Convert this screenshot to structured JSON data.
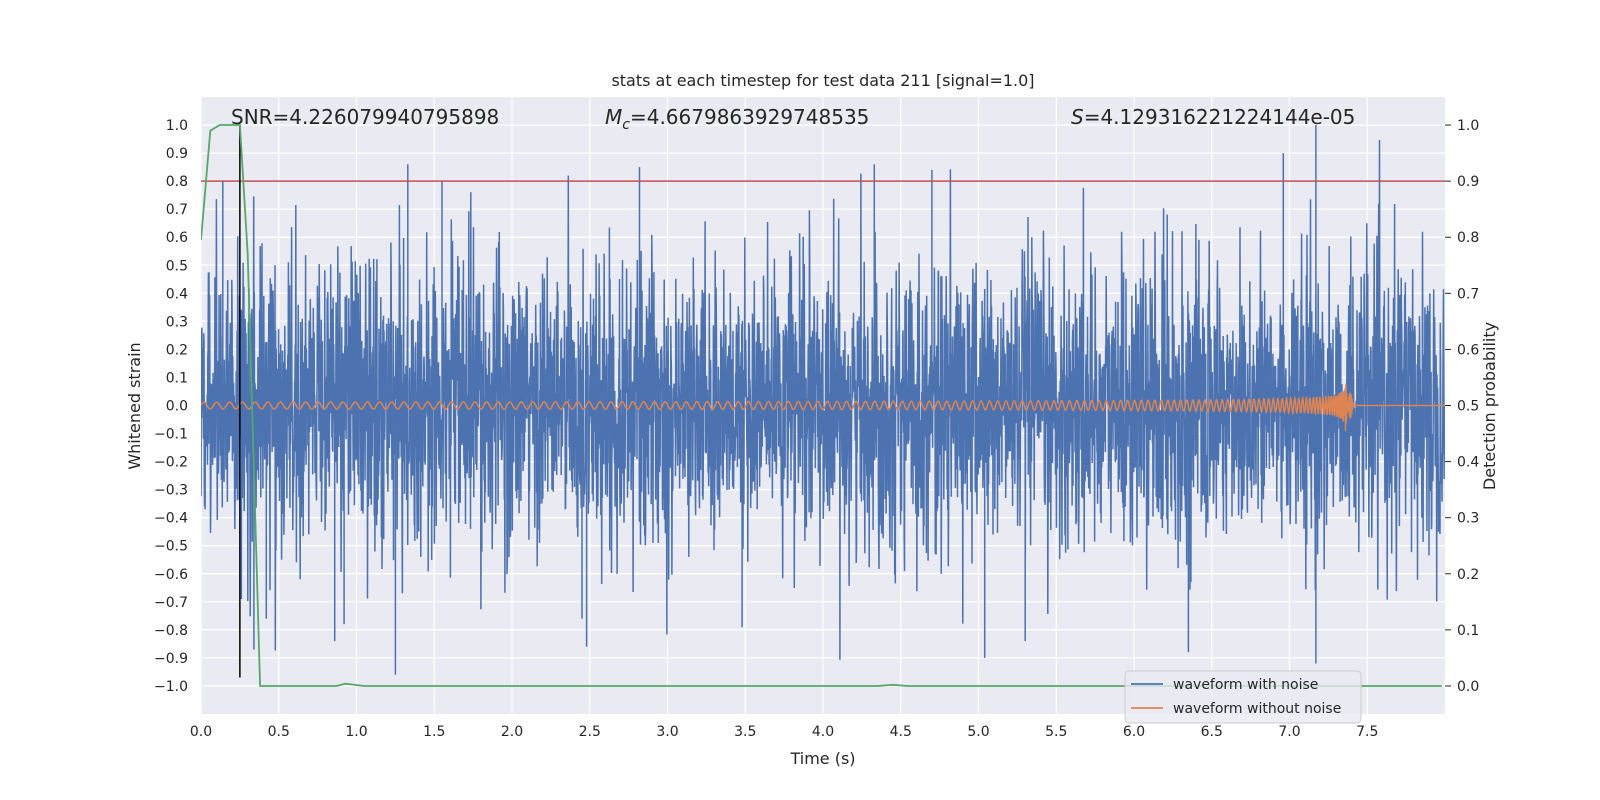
{
  "chart_data": {
    "type": "line",
    "title": "stats at each timestep for test data 211 [signal=1.0]",
    "xlabel": "Time (s)",
    "ylabel": "Whitened strain",
    "ylabel_right": "Detection probability",
    "xlim": [
      0.0,
      8.0
    ],
    "ylim": [
      -1.1,
      1.1
    ],
    "ylim_right": [
      -0.05,
      1.05
    ],
    "x_ticks": [
      0.0,
      0.5,
      1.0,
      1.5,
      2.0,
      2.5,
      3.0,
      3.5,
      4.0,
      4.5,
      5.0,
      5.5,
      6.0,
      6.5,
      7.0,
      7.5
    ],
    "x_tick_labels": [
      "0.0",
      "0.5",
      "1.0",
      "1.5",
      "2.0",
      "2.5",
      "3.0",
      "3.5",
      "4.0",
      "4.5",
      "5.0",
      "5.5",
      "6.0",
      "6.5",
      "7.0",
      "7.5"
    ],
    "y_ticks": [
      1.0,
      0.9,
      0.8,
      0.7,
      0.6,
      0.5,
      0.4,
      0.3,
      0.2,
      0.1,
      0.0,
      -0.1,
      -0.2,
      -0.3,
      -0.4,
      -0.5,
      -0.6,
      -0.7,
      -0.8,
      -0.9,
      -1.0
    ],
    "y_tick_labels": [
      "1.0",
      "0.9",
      "0.8",
      "0.7",
      "0.6",
      "0.5",
      "0.4",
      "0.3",
      "0.2",
      "0.1",
      "0.0",
      "−0.1",
      "−0.2",
      "−0.3",
      "−0.4",
      "−0.5",
      "−0.6",
      "−0.7",
      "−0.8",
      "−0.9",
      "−1.0"
    ],
    "y_right_ticks": [
      1.0,
      0.9,
      0.8,
      0.7,
      0.6,
      0.5,
      0.4,
      0.3,
      0.2,
      0.1,
      0.0
    ],
    "y_right_tick_labels": [
      "1.0",
      "0.9",
      "0.8",
      "0.7",
      "0.6",
      "0.5",
      "0.4",
      "0.3",
      "0.2",
      "0.1",
      "0.0"
    ],
    "grid": true,
    "legend_position": "bottom-right",
    "annotations": {
      "snr": "SNR=4.226079940795898",
      "mc_symbol": "M",
      "mc_sub": "c",
      "mc_value": "=4.6679863929748535",
      "s_symbol": "S",
      "s_value": "=4.129316221224144e-05"
    },
    "threshold_line": {
      "axis": "right",
      "value": 0.9,
      "color": "#c44e52"
    },
    "vertical_marker": {
      "x": 0.25,
      "y_from": -0.97,
      "y_to": 1.0,
      "color": "#000000"
    },
    "series": [
      {
        "name": "waveform with noise",
        "color": "#4c72b0",
        "axis": "left",
        "kind": "noise",
        "envelope_typical": 0.45,
        "duration": 8.0,
        "peaks": [
          {
            "x": 0.14,
            "y": 0.8
          },
          {
            "x": 0.26,
            "y": -0.69
          },
          {
            "x": 0.34,
            "y": -0.87
          },
          {
            "x": 0.42,
            "y": -0.76
          },
          {
            "x": 0.86,
            "y": -0.84
          },
          {
            "x": 0.92,
            "y": -0.78
          },
          {
            "x": 1.25,
            "y": -0.96
          },
          {
            "x": 1.33,
            "y": 0.86
          },
          {
            "x": 1.55,
            "y": 0.8
          },
          {
            "x": 2.45,
            "y": -0.76
          },
          {
            "x": 2.48,
            "y": -0.86
          },
          {
            "x": 2.82,
            "y": 0.85
          },
          {
            "x": 3.48,
            "y": -0.79
          },
          {
            "x": 4.33,
            "y": 0.86
          },
          {
            "x": 4.7,
            "y": 0.84
          },
          {
            "x": 5.04,
            "y": -0.9
          },
          {
            "x": 5.3,
            "y": -0.84
          },
          {
            "x": 6.35,
            "y": -0.88
          },
          {
            "x": 6.96,
            "y": 0.9
          },
          {
            "x": 7.17,
            "y": 1.0
          },
          {
            "x": 7.17,
            "y": -0.92
          }
        ]
      },
      {
        "name": "waveform without noise",
        "color": "#dd8452",
        "axis": "left",
        "kind": "chirp",
        "base_amplitude": 0.012,
        "merger_time": 7.36,
        "peak_amplitude": 0.1,
        "ringdown_time": 7.42
      },
      {
        "name": "detection probability",
        "color": "#55a868",
        "axis": "right",
        "kind": "line",
        "x": [
          0.0,
          0.06,
          0.12,
          0.25,
          0.3,
          0.38,
          0.42,
          0.6,
          0.87,
          0.93,
          1.05,
          4.35,
          4.45,
          4.55,
          7.98
        ],
        "y": [
          0.795,
          0.99,
          1.0,
          1.0,
          0.77,
          0.0,
          0.0,
          0.0,
          0.0,
          0.004,
          0.0,
          0.0,
          0.002,
          0.0,
          0.0
        ]
      }
    ]
  }
}
